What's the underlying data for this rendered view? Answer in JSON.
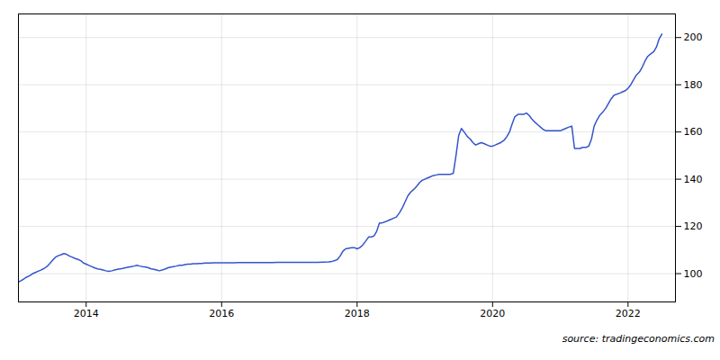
{
  "chart_data": {
    "type": "line",
    "color": "#3355cc",
    "annotations": [
      "source: tradingeconomics.com"
    ],
    "grid": true,
    "xlim": [
      2013.0,
      2022.7
    ],
    "xticks": [
      2014,
      2016,
      2018,
      2020,
      2022
    ],
    "ylim": [
      88,
      210
    ],
    "yticks": [
      100,
      120,
      140,
      160,
      180,
      200
    ],
    "x": [
      2013.0,
      2013.04,
      2013.08,
      2013.12,
      2013.17,
      2013.21,
      2013.25,
      2013.29,
      2013.33,
      2013.38,
      2013.42,
      2013.46,
      2013.5,
      2013.54,
      2013.58,
      2013.63,
      2013.67,
      2013.71,
      2013.75,
      2013.79,
      2013.83,
      2013.88,
      2013.92,
      2013.96,
      2014.0,
      2014.04,
      2014.08,
      2014.12,
      2014.17,
      2014.21,
      2014.25,
      2014.29,
      2014.33,
      2014.38,
      2014.42,
      2014.46,
      2014.5,
      2014.54,
      2014.58,
      2014.63,
      2014.67,
      2014.71,
      2014.75,
      2014.79,
      2014.83,
      2014.88,
      2014.92,
      2014.96,
      2015.0,
      2015.04,
      2015.08,
      2015.12,
      2015.17,
      2015.21,
      2015.25,
      2015.29,
      2015.33,
      2015.38,
      2015.42,
      2015.46,
      2015.5,
      2015.54,
      2015.58,
      2015.63,
      2015.67,
      2015.71,
      2015.75,
      2015.79,
      2015.83,
      2015.88,
      2015.92,
      2015.96,
      2016.0,
      2016.08,
      2016.17,
      2016.25,
      2016.33,
      2016.42,
      2016.5,
      2016.58,
      2016.67,
      2016.75,
      2016.83,
      2016.92,
      2017.0,
      2017.08,
      2017.17,
      2017.25,
      2017.33,
      2017.42,
      2017.5,
      2017.58,
      2017.63,
      2017.67,
      2017.71,
      2017.75,
      2017.79,
      2017.83,
      2017.88,
      2017.92,
      2017.96,
      2018.0,
      2018.04,
      2018.08,
      2018.12,
      2018.17,
      2018.21,
      2018.25,
      2018.29,
      2018.33,
      2018.37,
      2018.42,
      2018.46,
      2018.5,
      2018.54,
      2018.58,
      2018.63,
      2018.67,
      2018.71,
      2018.75,
      2018.79,
      2018.83,
      2018.88,
      2018.92,
      2018.96,
      2019.0,
      2019.04,
      2019.08,
      2019.12,
      2019.17,
      2019.21,
      2019.25,
      2019.29,
      2019.33,
      2019.37,
      2019.42,
      2019.46,
      2019.5,
      2019.54,
      2019.58,
      2019.63,
      2019.67,
      2019.71,
      2019.75,
      2019.79,
      2019.83,
      2019.88,
      2019.92,
      2019.96,
      2020.0,
      2020.04,
      2020.08,
      2020.12,
      2020.17,
      2020.21,
      2020.25,
      2020.29,
      2020.33,
      2020.38,
      2020.42,
      2020.46,
      2020.5,
      2020.54,
      2020.58,
      2020.63,
      2020.67,
      2020.71,
      2020.75,
      2020.79,
      2020.83,
      2020.88,
      2020.92,
      2020.96,
      2021.0,
      2021.04,
      2021.08,
      2021.12,
      2021.17,
      2021.21,
      2021.25,
      2021.29,
      2021.33,
      2021.38,
      2021.42,
      2021.46,
      2021.5,
      2021.54,
      2021.58,
      2021.63,
      2021.67,
      2021.71,
      2021.75,
      2021.79,
      2021.83,
      2021.88,
      2021.92,
      2021.96,
      2022.0,
      2022.04,
      2022.08,
      2022.12,
      2022.17,
      2022.21,
      2022.25,
      2022.29,
      2022.33,
      2022.38,
      2022.42,
      2022.46,
      2022.5
    ],
    "values": [
      96.5,
      97.0,
      97.8,
      98.5,
      99.2,
      100.0,
      100.5,
      101.0,
      101.5,
      102.2,
      103.0,
      104.2,
      105.5,
      106.8,
      107.5,
      108.0,
      108.5,
      108.2,
      107.5,
      107.0,
      106.5,
      106.0,
      105.5,
      104.5,
      104.0,
      103.5,
      103.0,
      102.5,
      102.0,
      101.8,
      101.5,
      101.2,
      101.0,
      101.2,
      101.5,
      101.8,
      102.0,
      102.2,
      102.5,
      102.8,
      103.0,
      103.2,
      103.5,
      103.2,
      103.0,
      102.8,
      102.5,
      102.0,
      101.8,
      101.5,
      101.2,
      101.5,
      102.0,
      102.5,
      102.8,
      103.0,
      103.2,
      103.5,
      103.5,
      103.8,
      104.0,
      104.0,
      104.2,
      104.2,
      104.3,
      104.3,
      104.5,
      104.5,
      104.5,
      104.6,
      104.6,
      104.6,
      104.6,
      104.6,
      104.6,
      104.7,
      104.7,
      104.7,
      104.7,
      104.7,
      104.7,
      104.7,
      104.8,
      104.8,
      104.8,
      104.8,
      104.8,
      104.8,
      104.8,
      104.8,
      104.9,
      105.0,
      105.2,
      105.5,
      106.0,
      107.5,
      109.5,
      110.5,
      110.8,
      111.0,
      111.0,
      110.5,
      111.0,
      112.0,
      113.5,
      115.5,
      115.5,
      116.0,
      118.0,
      121.5,
      121.5,
      122.0,
      122.5,
      123.0,
      123.5,
      124.0,
      126.0,
      128.0,
      130.5,
      133.0,
      134.5,
      135.5,
      137.0,
      138.5,
      139.5,
      140.0,
      140.5,
      141.0,
      141.5,
      141.8,
      142.0,
      142.0,
      142.0,
      142.0,
      142.0,
      142.5,
      150.0,
      158.5,
      161.5,
      160.0,
      158.0,
      157.0,
      155.5,
      154.5,
      155.0,
      155.5,
      155.0,
      154.5,
      154.0,
      154.0,
      154.5,
      155.0,
      155.5,
      156.5,
      158.0,
      160.0,
      163.5,
      166.5,
      167.5,
      167.5,
      167.5,
      168.0,
      167.0,
      165.5,
      164.0,
      163.0,
      162.0,
      161.0,
      160.5,
      160.5,
      160.5,
      160.5,
      160.5,
      160.5,
      161.0,
      161.5,
      162.0,
      162.5,
      153.0,
      153.0,
      153.0,
      153.5,
      153.5,
      154.0,
      157.0,
      162.5,
      165.0,
      167.0,
      168.5,
      170.0,
      172.0,
      174.0,
      175.5,
      176.0,
      176.5,
      177.0,
      177.5,
      178.5,
      180.0,
      182.0,
      184.0,
      185.5,
      187.5,
      190.0,
      192.0,
      193.0,
      194.0,
      196.0,
      199.5,
      201.5
    ]
  }
}
